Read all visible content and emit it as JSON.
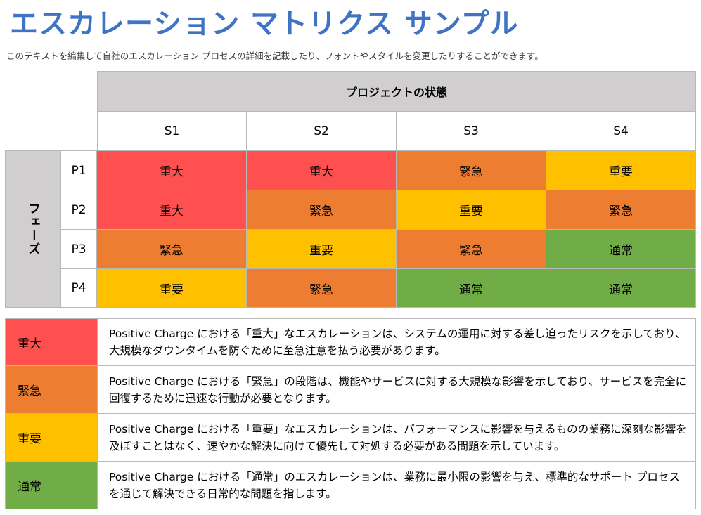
{
  "page": {
    "title": "エスカレーション マトリクス サンプル",
    "subtitle": "このテキストを編集して自社のエスカレーション プロセスの詳細を記載したり、フォントやスタイルを変更したりすることができます。"
  },
  "matrix": {
    "column_header": "プロジェクトの状態",
    "row_header": "フェーズ",
    "columns": [
      "S1",
      "S2",
      "S3",
      "S4"
    ],
    "rows": [
      {
        "label": "P1",
        "cells": [
          "重大",
          "重大",
          "緊急",
          "重要"
        ]
      },
      {
        "label": "P2",
        "cells": [
          "重大",
          "緊急",
          "重要",
          "緊急"
        ]
      },
      {
        "label": "P3",
        "cells": [
          "緊急",
          "重要",
          "緊急",
          "通常"
        ]
      },
      {
        "label": "P4",
        "cells": [
          "重要",
          "緊急",
          "通常",
          "通常"
        ]
      }
    ],
    "level_colors": {
      "重大": "#ff5050",
      "緊急": "#ed7d31",
      "重要": "#ffc000",
      "通常": "#70ad47"
    }
  },
  "legend": [
    {
      "level": "重大",
      "color": "#ff5050",
      "description": "Positive Charge における「重大」なエスカレーションは、システムの運用に対する差し迫ったリスクを示しており、大規模なダウンタイムを防ぐために至急注意を払う必要があります。"
    },
    {
      "level": "緊急",
      "color": "#ed7d31",
      "description": "Positive Charge における「緊急」の段階は、機能やサービスに対する大規模な影響を示しており、サービスを完全に回復するために迅速な行動が必要となります。"
    },
    {
      "level": "重要",
      "color": "#ffc000",
      "description": "Positive Charge における「重要」なエスカレーションは、パフォーマンスに影響を与えるものの業務に深刻な影響を及ぼすことはなく、速やかな解決に向けて優先して対処する必要がある問題を示しています。"
    },
    {
      "level": "通常",
      "color": "#70ad47",
      "description": "Positive Charge における「通常」のエスカレーションは、業務に最小限の影響を与え、標準的なサポート プロセスを通じて解決できる日常的な問題を指します。"
    }
  ]
}
